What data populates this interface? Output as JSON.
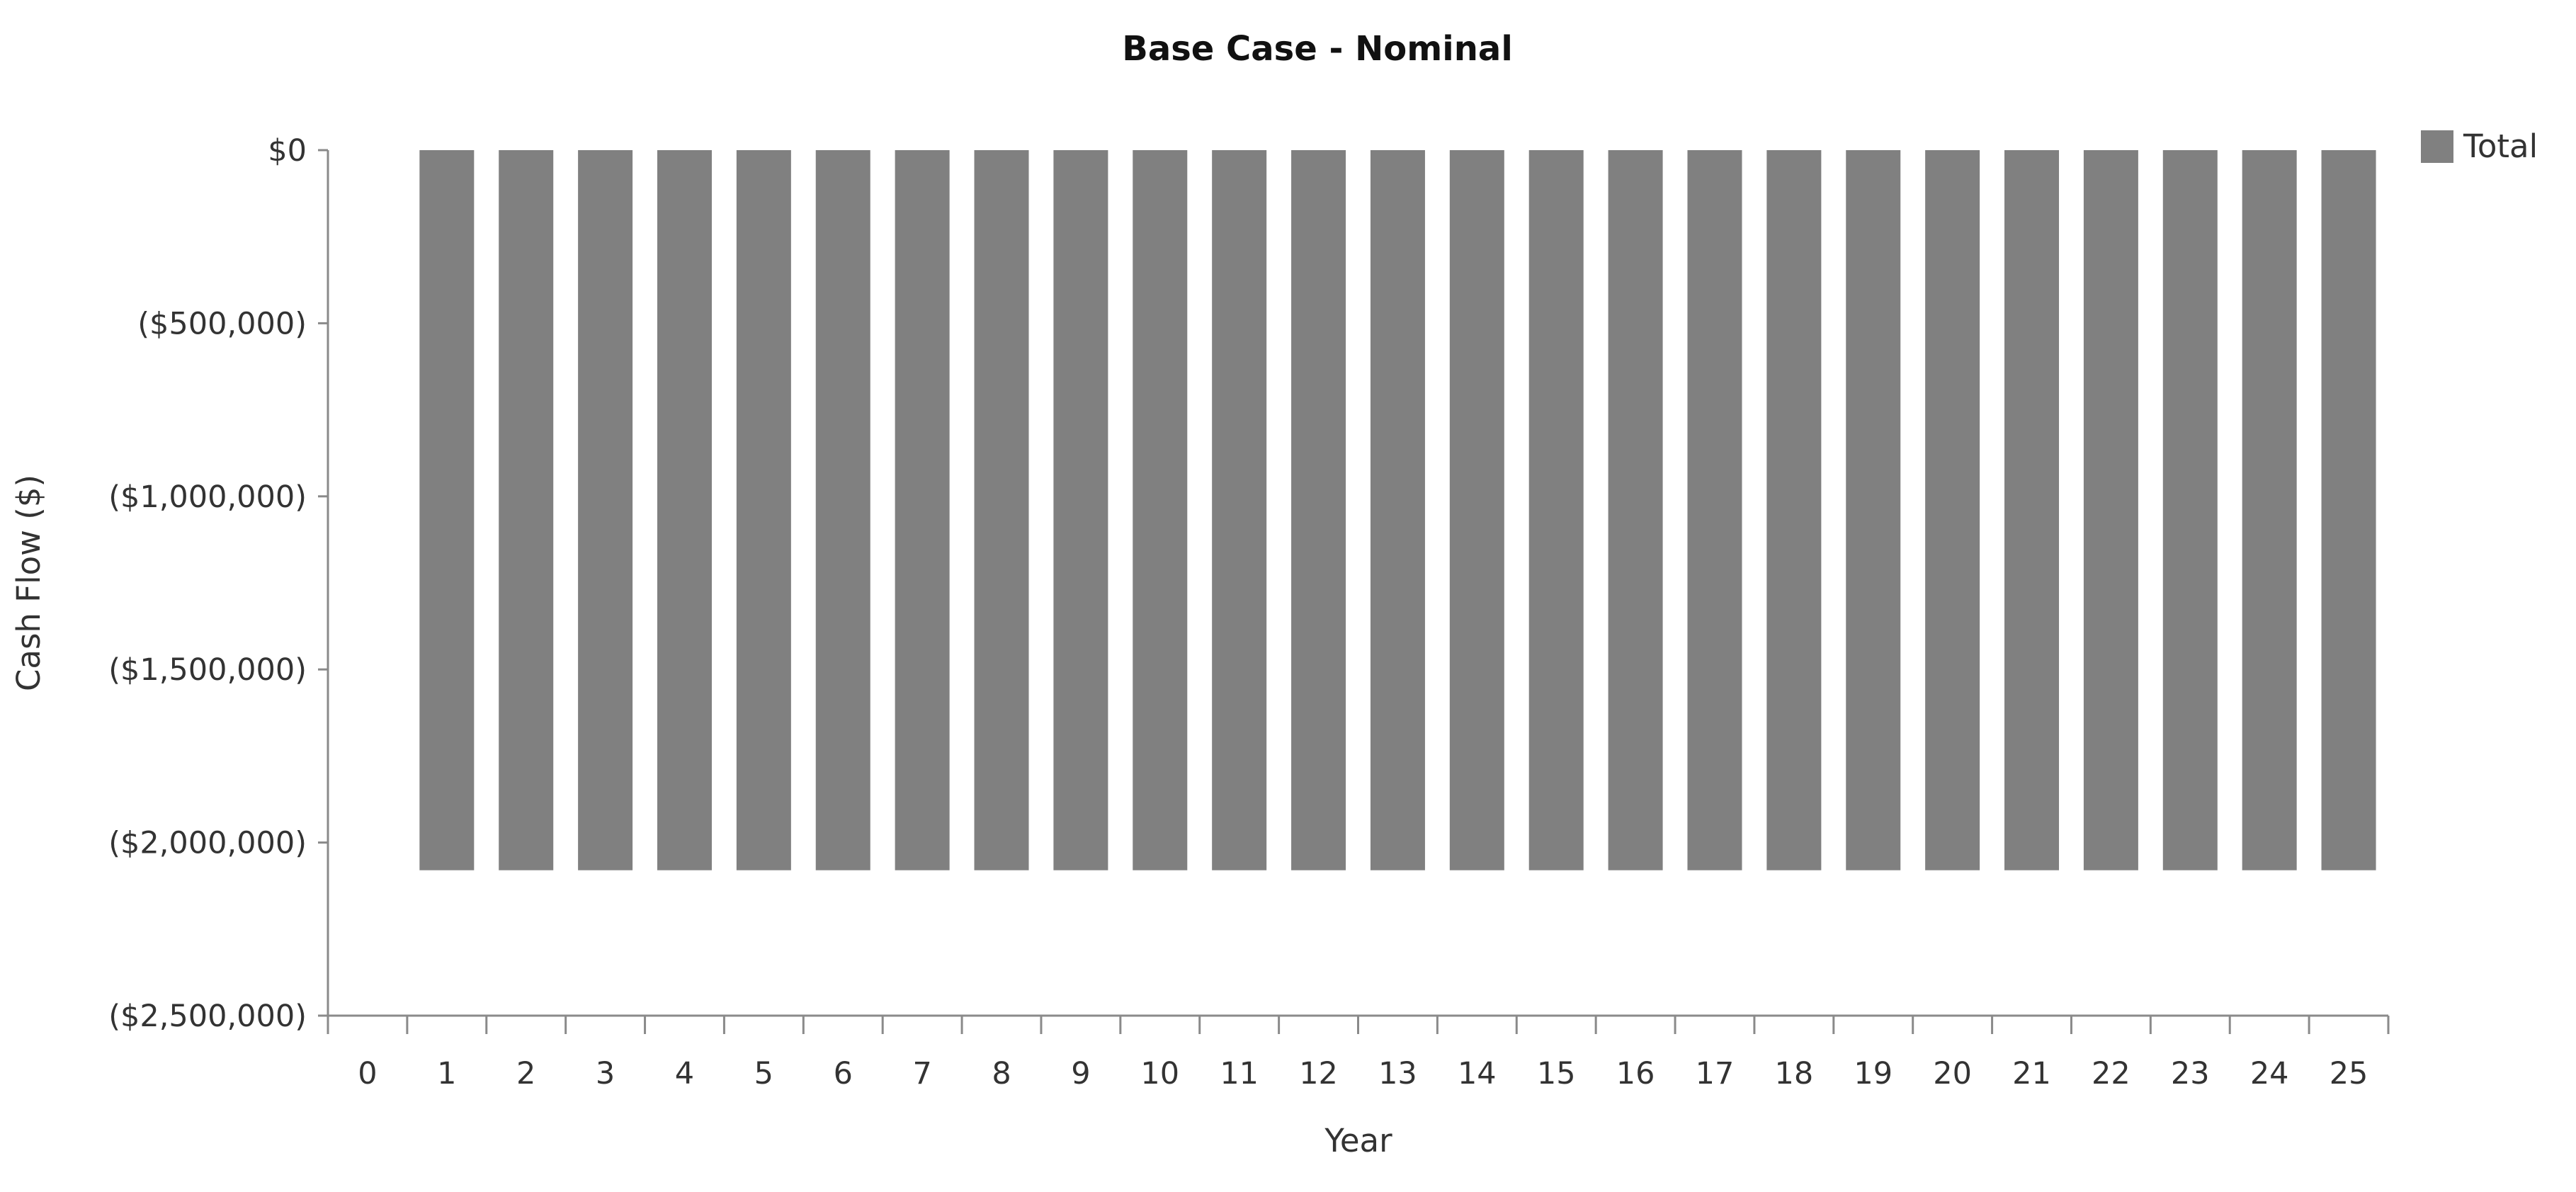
{
  "chart_data": {
    "type": "bar",
    "title": "Base Case - Nominal",
    "xlabel": "Year",
    "ylabel": "Cash Flow ($)",
    "categories": [
      "0",
      "1",
      "2",
      "3",
      "4",
      "5",
      "6",
      "7",
      "8",
      "9",
      "10",
      "11",
      "12",
      "13",
      "14",
      "15",
      "16",
      "17",
      "18",
      "19",
      "20",
      "21",
      "22",
      "23",
      "24",
      "25"
    ],
    "series": [
      {
        "name": "Total",
        "color": "#808080",
        "values": [
          0,
          -2080000,
          -2080000,
          -2080000,
          -2080000,
          -2080000,
          -2080000,
          -2080000,
          -2080000,
          -2080000,
          -2080000,
          -2080000,
          -2080000,
          -2080000,
          -2080000,
          -2080000,
          -2080000,
          -2080000,
          -2080000,
          -2080000,
          -2080000,
          -2080000,
          -2080000,
          -2080000,
          -2080000,
          -2080000
        ]
      }
    ],
    "ylim": [
      -2500000,
      0
    ],
    "yticks": [
      0,
      -500000,
      -1000000,
      -1500000,
      -2000000,
      -2500000
    ],
    "ytick_labels": [
      "$0",
      "($500,000)",
      "($1,000,000)",
      "($1,500,000)",
      "($2,000,000)",
      "($2,500,000)"
    ],
    "grid": false,
    "legend_position": "top-right"
  }
}
